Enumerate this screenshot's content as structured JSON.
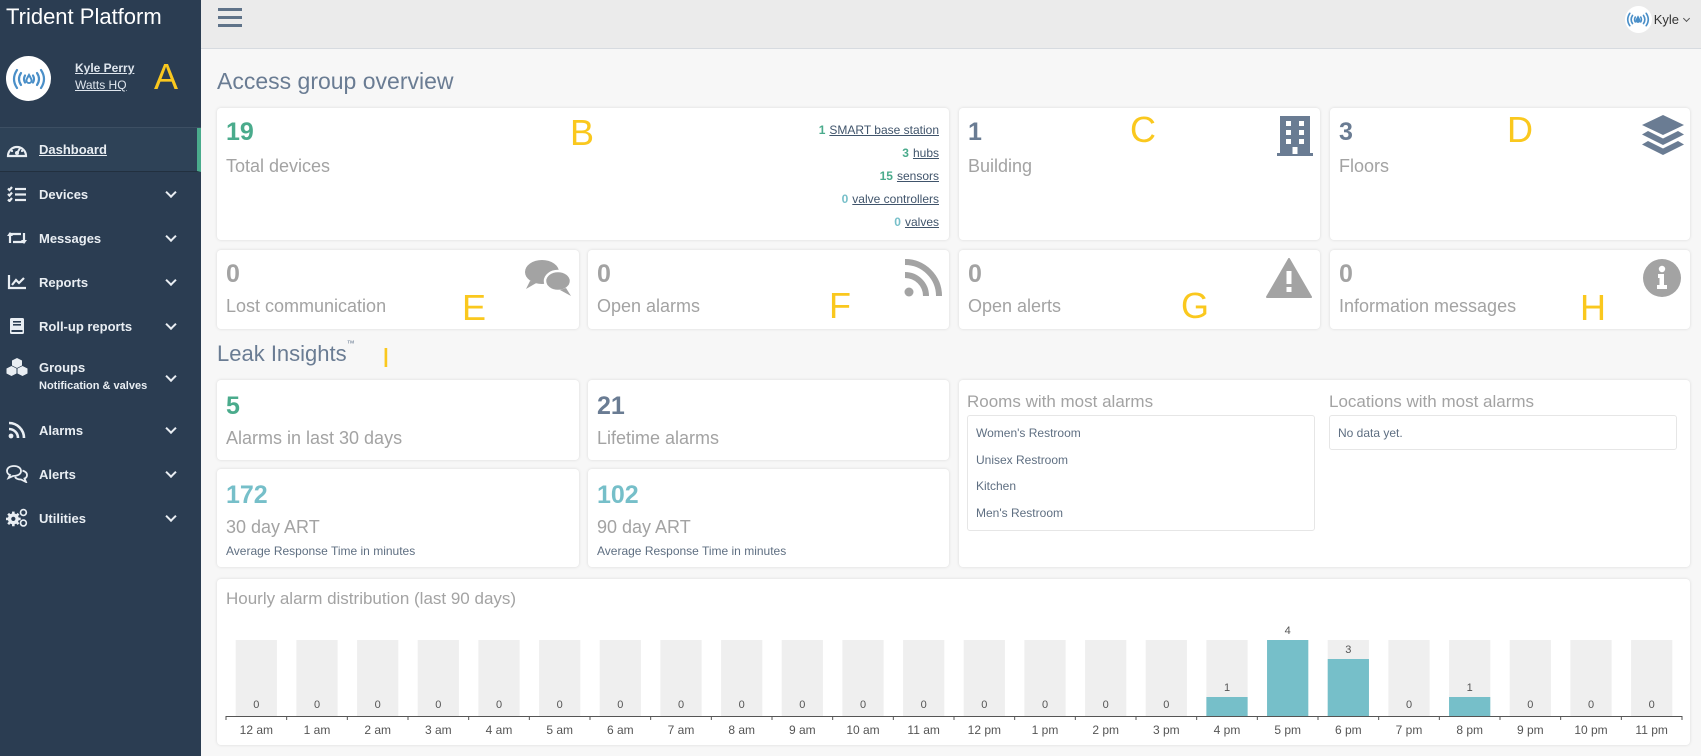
{
  "sidebar": {
    "brand": "Trident Platform",
    "user_name": "Kyle Perry",
    "location": "Watts HQ",
    "items": [
      {
        "label": "Dashboard",
        "icon": "dashboard-gauge-icon",
        "active": true
      },
      {
        "label": "Devices",
        "icon": "checklist-icon"
      },
      {
        "label": "Messages",
        "icon": "retweet-icon"
      },
      {
        "label": "Reports",
        "icon": "line-chart-icon"
      },
      {
        "label": "Roll-up reports",
        "icon": "book-icon"
      },
      {
        "label": "Groups",
        "sub": "Notification & valves",
        "icon": "cubes-icon"
      },
      {
        "label": "Alarms",
        "icon": "rss-icon"
      },
      {
        "label": "Alerts",
        "icon": "comments-icon"
      },
      {
        "label": "Utilities",
        "icon": "cogs-icon"
      }
    ]
  },
  "topbar": {
    "user_label": "Kyle"
  },
  "annotations": [
    "A",
    "B",
    "C",
    "D",
    "E",
    "F",
    "G",
    "H",
    "I"
  ],
  "overview": {
    "title": "Access group overview",
    "total_devices": {
      "value": "19",
      "label": "Total devices"
    },
    "devices": [
      {
        "count": "1",
        "label": "SMART base station"
      },
      {
        "count": "3",
        "label": "hubs"
      },
      {
        "count": "15",
        "label": "sensors"
      },
      {
        "count": "0",
        "label": "valve controllers"
      },
      {
        "count": "0",
        "label": "valves"
      }
    ],
    "building": {
      "value": "1",
      "label": "Building"
    },
    "floors": {
      "value": "3",
      "label": "Floors"
    },
    "lost_communication": {
      "value": "0",
      "label": "Lost communication"
    },
    "open_alarms": {
      "value": "0",
      "label": "Open alarms"
    },
    "open_alerts": {
      "value": "0",
      "label": "Open alerts"
    },
    "information_messages": {
      "value": "0",
      "label": "Information messages"
    }
  },
  "leak_insights": {
    "title": "Leak Insights",
    "tm": "™",
    "alarms_30": {
      "value": "5",
      "label": "Alarms in last 30 days"
    },
    "lifetime": {
      "value": "21",
      "label": "Lifetime alarms"
    },
    "art_30": {
      "value": "172",
      "label": "30 day ART",
      "sub": "Average Response Time in minutes"
    },
    "art_90": {
      "value": "102",
      "label": "90 day ART",
      "sub": "Average Response Time in minutes"
    },
    "rooms_title": "Rooms with most alarms",
    "rooms": [
      "Women's Restroom",
      "Unisex Restroom",
      "Kitchen",
      "Men's Restroom"
    ],
    "locations_title": "Locations with most alarms",
    "locations_empty": "No data yet."
  },
  "colors": {
    "sidebar": "#2b3d52",
    "green": "#4aab8c",
    "slate": "#6a7c93",
    "teal": "#76bfc9",
    "bar_bg": "#efefef"
  },
  "chart_data": {
    "type": "bar",
    "title": "Hourly alarm distribution (last 90 days)",
    "categories": [
      "12 am",
      "1 am",
      "2 am",
      "3 am",
      "4 am",
      "5 am",
      "6 am",
      "7 am",
      "8 am",
      "9 am",
      "10 am",
      "11 am",
      "12 pm",
      "1 pm",
      "2 pm",
      "3 pm",
      "4 pm",
      "5 pm",
      "6 pm",
      "7 pm",
      "8 pm",
      "9 pm",
      "10 pm",
      "11 pm"
    ],
    "values": [
      0,
      0,
      0,
      0,
      0,
      0,
      0,
      0,
      0,
      0,
      0,
      0,
      0,
      0,
      0,
      0,
      1,
      4,
      3,
      0,
      1,
      0,
      0,
      0
    ],
    "ylim": [
      0,
      4
    ],
    "xlabel": "",
    "ylabel": "",
    "grid": false
  }
}
